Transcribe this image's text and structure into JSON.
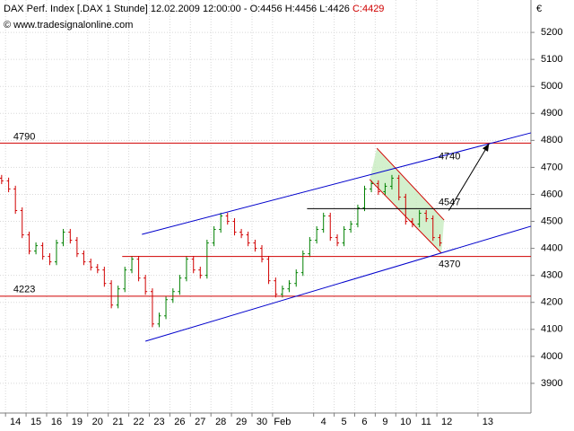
{
  "chart_data": {
    "type": "ohlc",
    "title": "DAX Perf. Index [.DAX  1 Stunde] 12.02.2009 12:00:00 - O:4456 H:4456 L:4426",
    "title_close": "C:4429",
    "source": "© www.tradesignalonline.com",
    "currency": "€",
    "xlim": [
      -0.75,
      25.1
    ],
    "ylim": [
      3790,
      5320
    ],
    "grid": true,
    "yticks": [
      3900,
      4000,
      4100,
      4200,
      4300,
      4400,
      4500,
      4600,
      4700,
      4800,
      4900,
      5000,
      5100,
      5200
    ],
    "xticks": [
      {
        "value": 0,
        "label": "14"
      },
      {
        "value": 1,
        "label": "15"
      },
      {
        "value": 2,
        "label": "16"
      },
      {
        "value": 3,
        "label": "19"
      },
      {
        "value": 4,
        "label": "20"
      },
      {
        "value": 5,
        "label": "21"
      },
      {
        "value": 6,
        "label": "22"
      },
      {
        "value": 7,
        "label": "23"
      },
      {
        "value": 8,
        "label": "26"
      },
      {
        "value": 9,
        "label": "27"
      },
      {
        "value": 10,
        "label": "28"
      },
      {
        "value": 11,
        "label": "29"
      },
      {
        "value": 12,
        "label": "30"
      },
      {
        "value": 13,
        "label": "Feb"
      },
      {
        "value": 15,
        "label": "4"
      },
      {
        "value": 16,
        "label": "5"
      },
      {
        "value": 17,
        "label": "6"
      },
      {
        "value": 18,
        "label": "9"
      },
      {
        "value": 19,
        "label": "10"
      },
      {
        "value": 20,
        "label": "11"
      },
      {
        "value": 21,
        "label": "12"
      },
      {
        "value": 23,
        "label": "13"
      }
    ],
    "up_color": "#008000",
    "down_color": "#d00000",
    "x": [
      -0.67,
      -0.33,
      0,
      0.33,
      0.67,
      1,
      1.33,
      1.67,
      2,
      2.33,
      2.67,
      3,
      3.33,
      3.67,
      4,
      4.33,
      4.67,
      5,
      5.33,
      5.67,
      6,
      6.33,
      6.67,
      7,
      7.33,
      7.67,
      8,
      8.33,
      8.67,
      9,
      9.33,
      9.67,
      10,
      10.33,
      10.67,
      11,
      11.33,
      11.67,
      12,
      12.33,
      12.67,
      13,
      13.33,
      13.67,
      14,
      14.33,
      14.67,
      15,
      15.33,
      15.67,
      16,
      16.33,
      16.67,
      17,
      17.33,
      17.67,
      18,
      18.33,
      18.67,
      19,
      19.33,
      19.67,
      20,
      20.33,
      20.67
    ],
    "open": [
      4660,
      4650,
      4620,
      4540,
      4450,
      4390,
      4410,
      4370,
      4350,
      4420,
      4460,
      4430,
      4380,
      4350,
      4330,
      4320,
      4270,
      4190,
      4250,
      4320,
      4360,
      4290,
      4240,
      4120,
      4150,
      4210,
      4240,
      4290,
      4360,
      4320,
      4300,
      4420,
      4470,
      4520,
      4500,
      4460,
      4450,
      4420,
      4400,
      4360,
      4280,
      4230,
      4250,
      4270,
      4310,
      4380,
      4430,
      4470,
      4520,
      4440,
      4420,
      4470,
      4490,
      4550,
      4620,
      4640,
      4610,
      4630,
      4660,
      4590,
      4500,
      4490,
      4530,
      4510,
      4440
    ],
    "high": [
      4672,
      4662,
      4632,
      4552,
      4462,
      4422,
      4422,
      4382,
      4432,
      4472,
      4472,
      4442,
      4392,
      4362,
      4342,
      4332,
      4282,
      4262,
      4332,
      4372,
      4372,
      4302,
      4252,
      4162,
      4222,
      4252,
      4302,
      4372,
      4372,
      4332,
      4432,
      4482,
      4532,
      4532,
      4512,
      4472,
      4462,
      4432,
      4412,
      4372,
      4292,
      4262,
      4282,
      4322,
      4392,
      4442,
      4482,
      4532,
      4532,
      4452,
      4482,
      4502,
      4562,
      4632,
      4652,
      4652,
      4642,
      4672,
      4672,
      4602,
      4512,
      4542,
      4542,
      4522,
      4452
    ],
    "low": [
      4638,
      4608,
      4528,
      4438,
      4378,
      4378,
      4358,
      4338,
      4338,
      4408,
      4418,
      4368,
      4338,
      4318,
      4308,
      4258,
      4178,
      4178,
      4238,
      4308,
      4278,
      4228,
      4108,
      4108,
      4138,
      4198,
      4228,
      4278,
      4308,
      4288,
      4288,
      4408,
      4458,
      4488,
      4448,
      4438,
      4408,
      4388,
      4348,
      4268,
      4218,
      4218,
      4238,
      4258,
      4298,
      4368,
      4418,
      4458,
      4428,
      4408,
      4408,
      4458,
      4478,
      4538,
      4608,
      4598,
      4598,
      4618,
      4578,
      4488,
      4478,
      4478,
      4498,
      4428,
      4408
    ],
    "close": [
      4650,
      4620,
      4540,
      4450,
      4390,
      4410,
      4370,
      4350,
      4420,
      4460,
      4430,
      4380,
      4350,
      4330,
      4320,
      4270,
      4190,
      4250,
      4320,
      4360,
      4290,
      4240,
      4120,
      4150,
      4210,
      4240,
      4290,
      4360,
      4320,
      4300,
      4420,
      4470,
      4520,
      4500,
      4460,
      4450,
      4420,
      4400,
      4360,
      4280,
      4230,
      4250,
      4270,
      4310,
      4380,
      4430,
      4470,
      4520,
      4440,
      4420,
      4470,
      4490,
      4550,
      4620,
      4640,
      4610,
      4630,
      4660,
      4590,
      4500,
      4490,
      4530,
      4510,
      4440,
      4420
    ],
    "levels": [
      {
        "value": 4790,
        "xstart": -0.75,
        "color": "#d00000",
        "label_x": -0.1
      },
      {
        "value": 4223,
        "xstart": -0.75,
        "color": "#d00000",
        "label_x": -0.1
      },
      {
        "value": 4370,
        "xstart": 5.2,
        "color": "#d00000",
        "label_x": 20.6
      },
      {
        "value": 4547,
        "xstart": 14.2,
        "color": "#000000",
        "label_x": 20.6
      }
    ],
    "channel": {
      "color": "#0000cc",
      "upper": {
        "x": [
          6.16,
          25.1
        ],
        "y": [
          4452,
          4828
        ]
      },
      "lower": {
        "x": [
          6.33,
          25.1
        ],
        "y": [
          4056,
          4482
        ]
      },
      "label": 4740,
      "label_x": 20.6
    },
    "small_channel": {
      "color": "#d00000",
      "fill": "#c8ecc0",
      "upper": {
        "x": [
          17.6,
          20.87
        ],
        "y": [
          4771,
          4505
        ]
      },
      "lower": {
        "x": [
          17.25,
          20.74
        ],
        "y": [
          4655,
          4382
        ]
      }
    },
    "arrow": {
      "x": [
        21.1,
        23.06
      ],
      "y": [
        4540,
        4788
      ]
    }
  }
}
